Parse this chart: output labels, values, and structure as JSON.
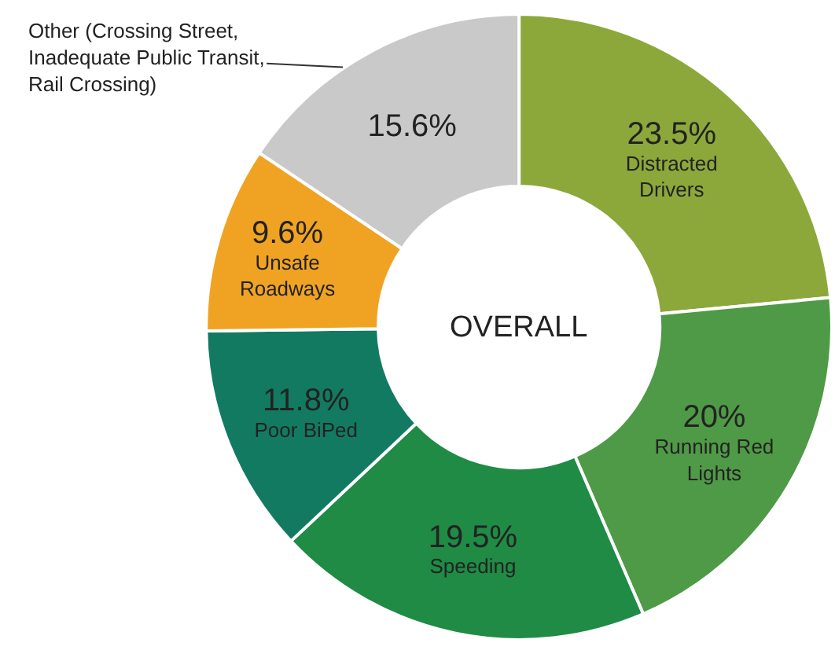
{
  "chart_data": {
    "type": "donut",
    "categories": [
      "Distracted Drivers",
      "Running Red Lights",
      "Speeding",
      "Poor BiPed",
      "Unsafe Roadways",
      "Other (Crossing Street, Inadequate Public Transit, Rail Crossing)"
    ],
    "values": [
      23.5,
      20,
      19.5,
      11.8,
      9.6,
      15.6
    ],
    "colors": [
      "#8ca83b",
      "#4f9a46",
      "#1f8b45",
      "#137a62",
      "#f0a323",
      "#c9c9c9"
    ],
    "value_labels": [
      "23.5%",
      "20%",
      "19.5%",
      "11.8%",
      "9.6%",
      "15.6%"
    ],
    "annotations": [
      "OVERALL"
    ],
    "legend": false
  }
}
